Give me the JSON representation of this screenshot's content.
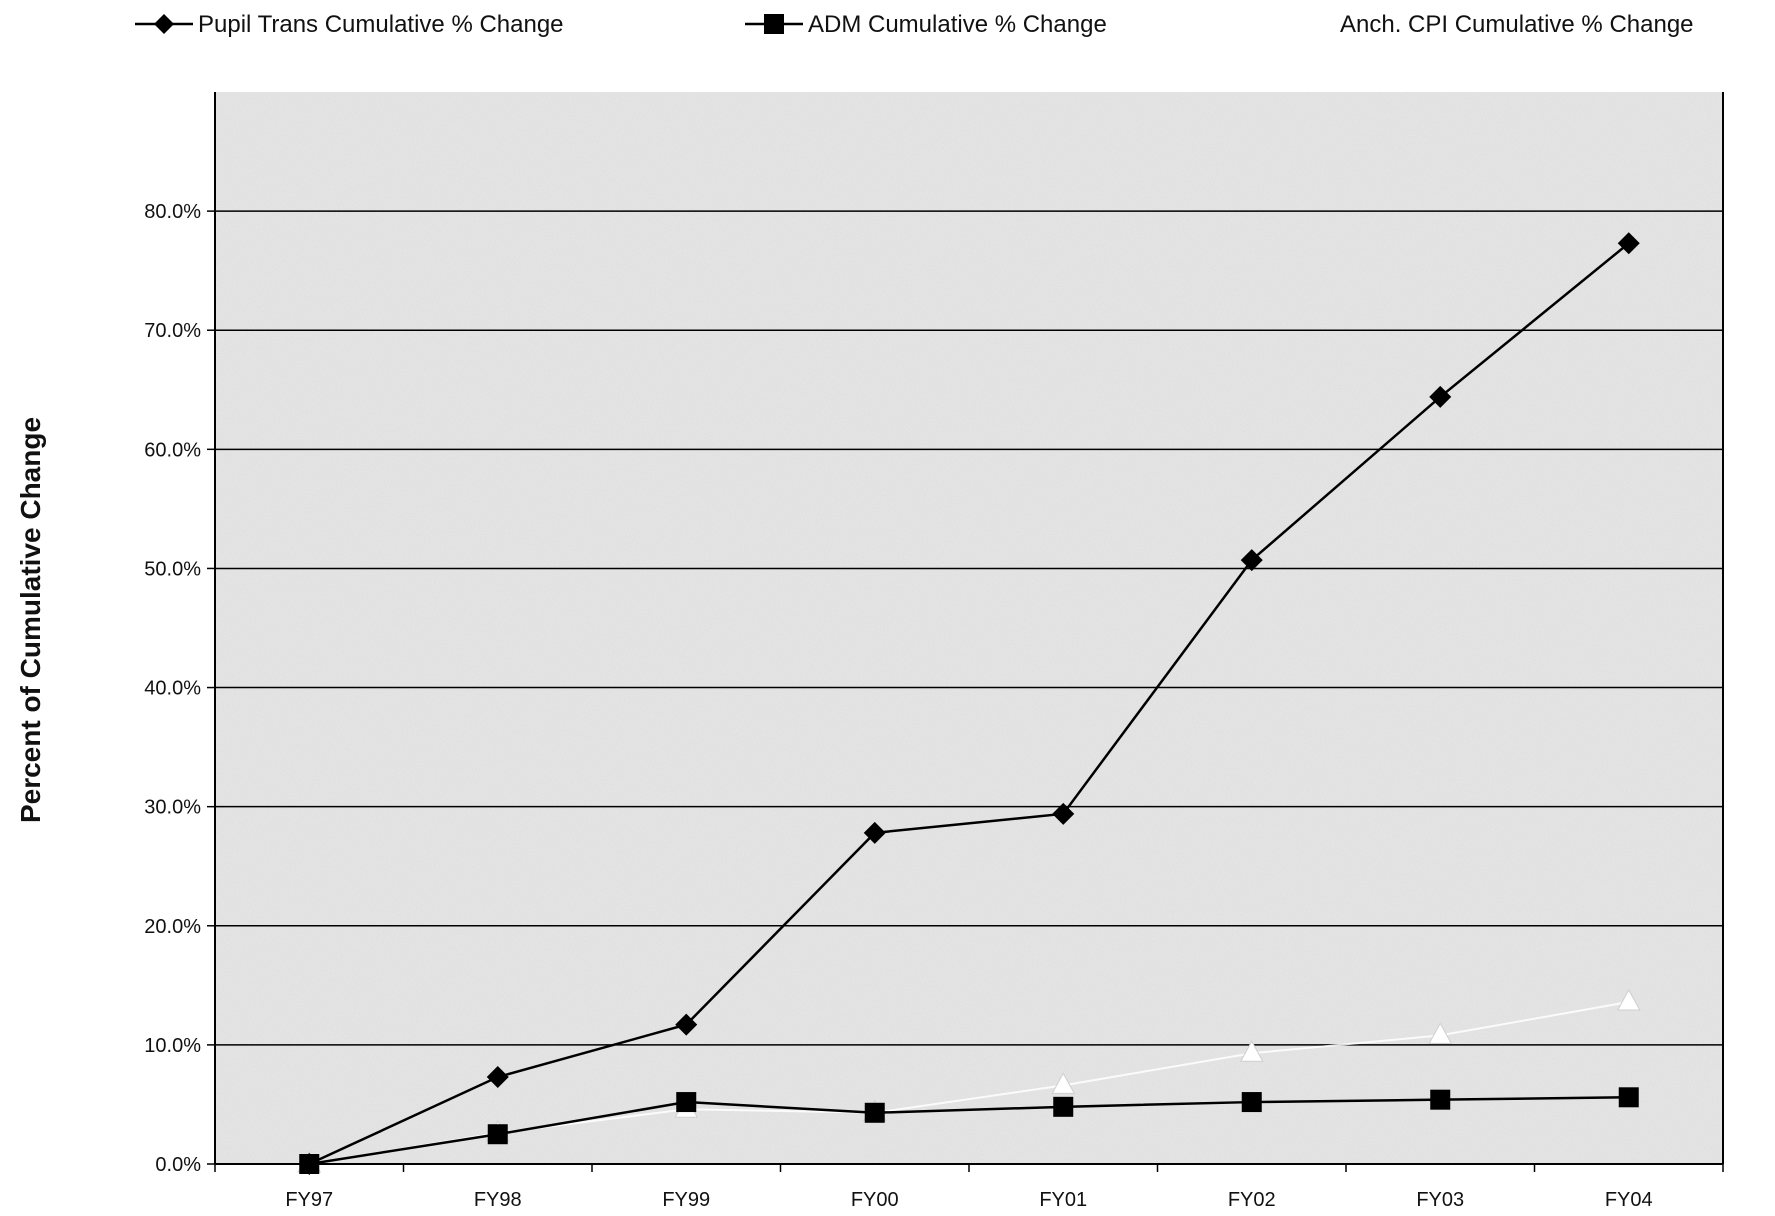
{
  "chart_data": {
    "type": "line",
    "title": "",
    "xlabel": "",
    "ylabel": "Percent of Cumulative Change",
    "categories": [
      "FY97",
      "FY98",
      "FY99",
      "FY00",
      "FY01",
      "FY02",
      "FY03",
      "FY04"
    ],
    "y_tick_labels": [
      "0.0%",
      "10.0%",
      "20.0%",
      "30.0%",
      "40.0%",
      "50.0%",
      "60.0%",
      "70.0%",
      "80.0%"
    ],
    "ylim": [
      0,
      90
    ],
    "grid": true,
    "legend_position": "top",
    "series": [
      {
        "name": "Pupil Trans Cumulative % Change",
        "marker": "diamond",
        "color": "#000000",
        "values": [
          0.0,
          7.3,
          11.7,
          27.8,
          29.4,
          50.7,
          64.4,
          77.3
        ]
      },
      {
        "name": "ADM Cumulative % Change",
        "marker": "square",
        "color": "#000000",
        "values": [
          0.0,
          2.5,
          5.2,
          4.3,
          4.8,
          5.2,
          5.4,
          5.6
        ]
      },
      {
        "name": "Anch. CPI Cumulative % Change",
        "marker": "triangle",
        "color": "#ffffff",
        "values": [
          0.0,
          2.6,
          4.6,
          4.3,
          6.6,
          9.3,
          10.8,
          13.6
        ]
      }
    ]
  },
  "colors": {
    "plot_background": "#e9e9e9",
    "gridline": "#000000",
    "line": "#000000"
  }
}
